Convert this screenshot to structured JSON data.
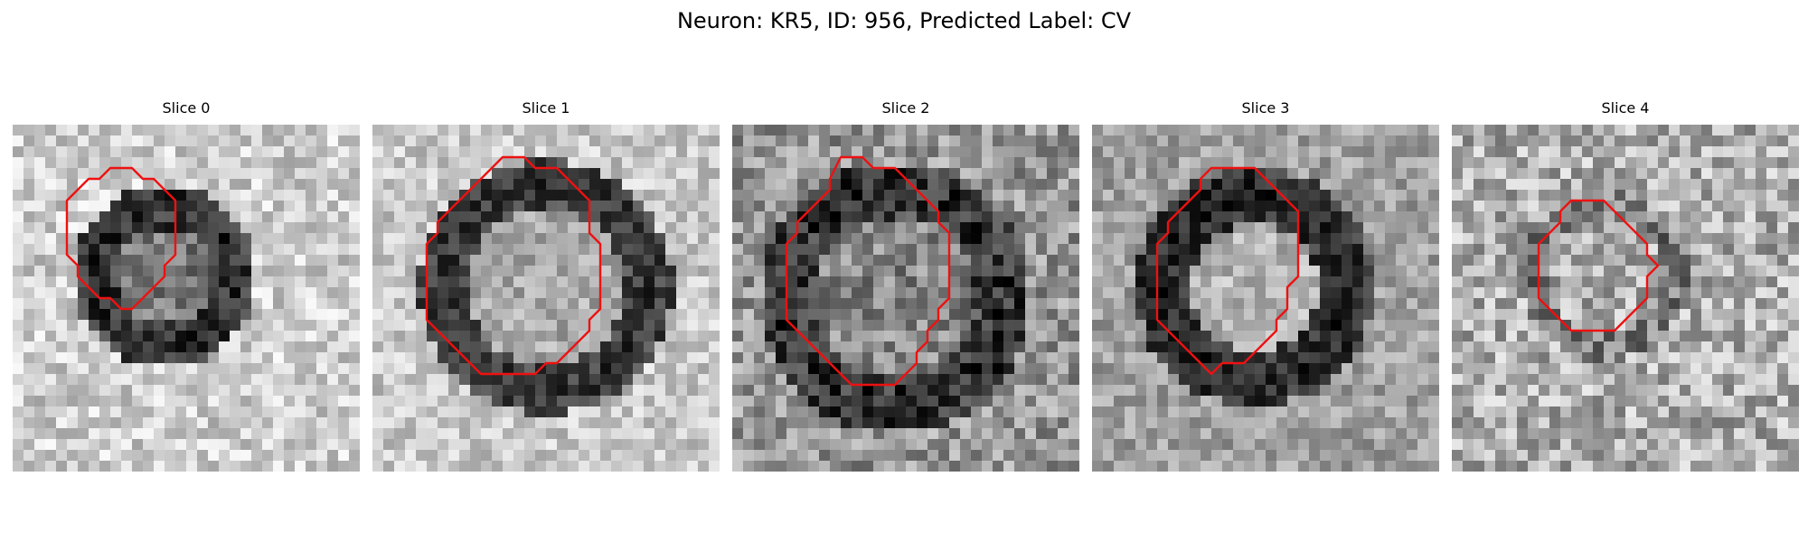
{
  "figure": {
    "title": "Neuron: KR5, ID: 956, Predicted Label: CV"
  },
  "slices": [
    {
      "title": "Slice 0"
    },
    {
      "title": "Slice 1"
    },
    {
      "title": "Slice 2"
    },
    {
      "title": "Slice 3"
    },
    {
      "title": "Slice 4"
    }
  ],
  "colors": {
    "contour": "#ee1111",
    "background": "#ffffff"
  }
}
